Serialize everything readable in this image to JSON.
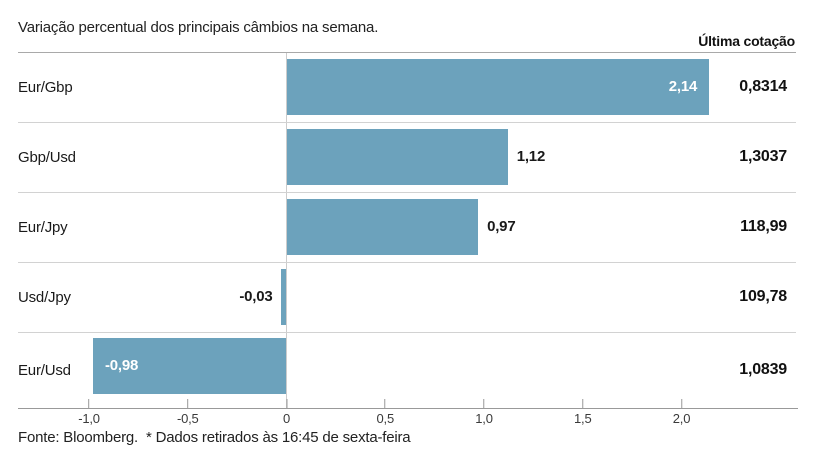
{
  "header": {
    "title": "Variação percentual dos principais câmbios na semana.",
    "right_column_label": "Última cotação"
  },
  "chart_data": {
    "type": "bar",
    "orientation": "horizontal",
    "value_unit": "percent",
    "bar_color": "#6ca2bc",
    "xlim": [
      -1.36,
      2.6
    ],
    "grid": "zero-line-only",
    "categories": [
      "Eur/Gbp",
      "Gbp/Usd",
      "Eur/Jpy",
      "Usd/Jpy",
      "Eur/Usd"
    ],
    "values": [
      2.14,
      1.12,
      0.97,
      -0.03,
      -0.98
    ],
    "rows": [
      {
        "pair": "Eur/Gbp",
        "change_pct": 2.14,
        "change_label": "2,14",
        "quote": "0,8314",
        "label_inside": true
      },
      {
        "pair": "Gbp/Usd",
        "change_pct": 1.12,
        "change_label": "1,12",
        "quote": "1,3037",
        "label_inside": false
      },
      {
        "pair": "Eur/Jpy",
        "change_pct": 0.97,
        "change_label": "0,97",
        "quote": "118,99",
        "label_inside": false
      },
      {
        "pair": "Usd/Jpy",
        "change_pct": -0.03,
        "change_label": "-0,03",
        "quote": "109,78",
        "label_inside": false
      },
      {
        "pair": "Eur/Usd",
        "change_pct": -0.98,
        "change_label": "-0,98",
        "quote": "1,0839",
        "label_inside": true
      }
    ],
    "ticks": [
      {
        "value": -1.0,
        "label": "-1,0"
      },
      {
        "value": -0.5,
        "label": "-0,5"
      },
      {
        "value": 0,
        "label": "0"
      },
      {
        "value": 0.5,
        "label": "0,5"
      },
      {
        "value": 1.0,
        "label": "1,0"
      },
      {
        "value": 1.5,
        "label": "1,5"
      },
      {
        "value": 2.0,
        "label": "2,0"
      }
    ]
  },
  "footer": {
    "source": "Fonte: Bloomberg.",
    "note": "* Dados retirados às 16:45 de sexta-feira"
  }
}
